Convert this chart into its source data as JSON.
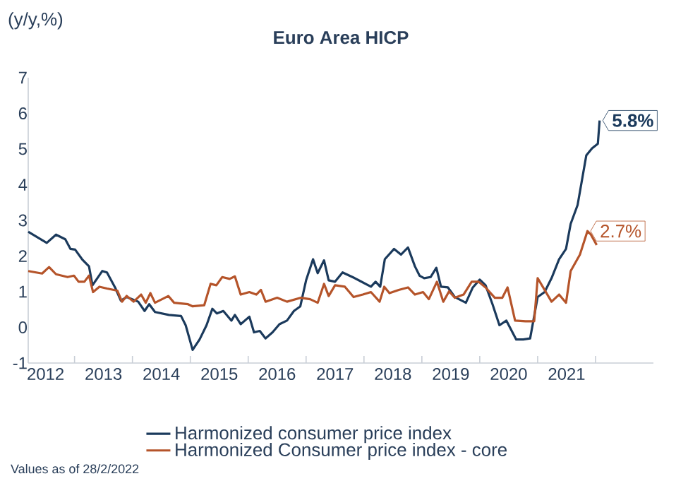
{
  "chart_data": {
    "type": "line",
    "title": "Euro Area HICP",
    "ylabel": "(y/y,%)",
    "xlim": [
      2012.2,
      2023.0
    ],
    "ylim": [
      -1,
      7
    ],
    "yticks": [
      -1,
      0,
      1,
      2,
      3,
      4,
      5,
      6,
      7
    ],
    "xticks": [
      {
        "value": 2012.5,
        "label": "2012"
      },
      {
        "value": 2013,
        "label": null
      },
      {
        "value": 2013.5,
        "label": "2013"
      },
      {
        "value": 2014,
        "label": null
      },
      {
        "value": 2014.5,
        "label": "2014"
      },
      {
        "value": 2015,
        "label": null
      },
      {
        "value": 2015.5,
        "label": "2015"
      },
      {
        "value": 2016,
        "label": null
      },
      {
        "value": 2016.5,
        "label": "2016"
      },
      {
        "value": 2017,
        "label": null
      },
      {
        "value": 2017.5,
        "label": "2017"
      },
      {
        "value": 2018,
        "label": null
      },
      {
        "value": 2018.5,
        "label": "2018"
      },
      {
        "value": 2019,
        "label": null
      },
      {
        "value": 2019.5,
        "label": "2019"
      },
      {
        "value": 2020,
        "label": null
      },
      {
        "value": 2020.5,
        "label": "2020"
      },
      {
        "value": 2021,
        "label": null
      },
      {
        "value": 2021.5,
        "label": "2021"
      },
      {
        "value": 2022,
        "label": null
      }
    ],
    "grid": false,
    "legend": "bottom",
    "marker": "none",
    "line_style": "solid",
    "series": [
      {
        "name": "Harmonized consumer price index",
        "color": "#1b3a5c",
        "x": [
          2012.2,
          2012.52,
          2012.68,
          2012.84,
          2012.93,
          2013.01,
          2013.13,
          2013.25,
          2013.31,
          2013.48,
          2013.56,
          2013.7,
          2013.8,
          2013.9,
          2014.1,
          2014.21,
          2014.29,
          2014.39,
          2014.63,
          2014.84,
          2014.92,
          2015.04,
          2015.16,
          2015.28,
          2015.38,
          2015.46,
          2015.57,
          2015.71,
          2015.77,
          2015.87,
          2016.02,
          2016.1,
          2016.2,
          2016.3,
          2016.42,
          2016.54,
          2016.67,
          2016.79,
          2016.9,
          2017.0,
          2017.12,
          2017.2,
          2017.31,
          2017.39,
          2017.5,
          2017.63,
          2017.84,
          2018.12,
          2018.2,
          2018.28,
          2018.36,
          2018.52,
          2018.64,
          2018.76,
          2018.88,
          2018.96,
          2019.04,
          2019.15,
          2019.25,
          2019.33,
          2019.45,
          2019.57,
          2019.76,
          2019.88,
          2020.0,
          2020.1,
          2020.22,
          2020.34,
          2020.46,
          2020.63,
          2020.75,
          2020.87,
          2021.0,
          2021.12,
          2021.24,
          2021.37,
          2021.49,
          2021.57,
          2021.69,
          2021.84,
          2021.94,
          2022.04,
          2022.07
        ],
        "values": [
          2.68,
          2.37,
          2.6,
          2.47,
          2.2,
          2.18,
          1.91,
          1.71,
          1.18,
          1.58,
          1.54,
          1.12,
          0.75,
          0.85,
          0.72,
          0.46,
          0.65,
          0.43,
          0.35,
          0.32,
          0.06,
          -0.63,
          -0.34,
          0.06,
          0.52,
          0.39,
          0.46,
          0.19,
          0.35,
          0.09,
          0.3,
          -0.14,
          -0.1,
          -0.31,
          -0.14,
          0.09,
          0.19,
          0.46,
          0.59,
          1.32,
          1.91,
          1.52,
          1.88,
          1.32,
          1.28,
          1.54,
          1.38,
          1.14,
          1.28,
          1.14,
          1.91,
          2.2,
          2.04,
          2.24,
          1.71,
          1.45,
          1.38,
          1.41,
          1.67,
          1.14,
          1.12,
          0.85,
          0.69,
          1.12,
          1.34,
          1.18,
          0.65,
          0.06,
          0.19,
          -0.34,
          -0.34,
          -0.31,
          0.85,
          0.99,
          1.38,
          1.91,
          2.2,
          2.9,
          3.43,
          4.82,
          5.02,
          5.15,
          5.8
        ]
      },
      {
        "name": "Harmonized Consumer price index - core",
        "color": "#b5542a",
        "x": [
          2012.2,
          2012.44,
          2012.56,
          2012.68,
          2012.88,
          2012.99,
          2013.07,
          2013.17,
          2013.25,
          2013.32,
          2013.43,
          2013.56,
          2013.74,
          2013.82,
          2013.9,
          2014.02,
          2014.15,
          2014.23,
          2014.31,
          2014.39,
          2014.62,
          2014.72,
          2014.96,
          2015.04,
          2015.24,
          2015.35,
          2015.45,
          2015.55,
          2015.68,
          2015.77,
          2015.87,
          2016.02,
          2016.14,
          2016.22,
          2016.3,
          2016.5,
          2016.67,
          2016.91,
          2017.07,
          2017.2,
          2017.31,
          2017.39,
          2017.5,
          2017.67,
          2017.82,
          2017.98,
          2018.12,
          2018.27,
          2018.35,
          2018.44,
          2018.6,
          2018.76,
          2018.88,
          2019.02,
          2019.12,
          2019.26,
          2019.37,
          2019.47,
          2019.57,
          2019.72,
          2019.86,
          2019.98,
          2020.1,
          2020.26,
          2020.39,
          2020.48,
          2020.61,
          2020.79,
          2020.94,
          2021.0,
          2021.12,
          2021.24,
          2021.37,
          2021.49,
          2021.57,
          2021.73,
          2021.86,
          2021.92,
          2022.02
        ],
        "values": [
          1.58,
          1.51,
          1.69,
          1.49,
          1.41,
          1.45,
          1.28,
          1.28,
          1.45,
          0.99,
          1.14,
          1.09,
          1.03,
          0.72,
          0.88,
          0.72,
          0.92,
          0.69,
          0.96,
          0.69,
          0.88,
          0.69,
          0.65,
          0.59,
          0.62,
          1.22,
          1.18,
          1.41,
          1.36,
          1.43,
          0.92,
          0.99,
          0.92,
          1.05,
          0.72,
          0.83,
          0.72,
          0.83,
          0.79,
          0.69,
          1.22,
          0.88,
          1.18,
          1.14,
          0.85,
          0.92,
          0.99,
          0.72,
          1.14,
          0.96,
          1.05,
          1.12,
          0.92,
          0.99,
          0.79,
          1.28,
          0.72,
          1.01,
          0.83,
          0.92,
          1.28,
          1.28,
          1.12,
          0.83,
          0.83,
          1.12,
          0.19,
          0.17,
          0.17,
          1.38,
          1.05,
          0.72,
          0.92,
          0.69,
          1.58,
          2.04,
          2.7,
          2.6,
          2.31
        ]
      }
    ],
    "annotations": [
      {
        "text": "5.8%",
        "x": 2022.07,
        "y": 5.8
      },
      {
        "text": "2.7%",
        "x": 2021.86,
        "y": 2.7
      },
      "Values as of 28/2/2022"
    ]
  }
}
